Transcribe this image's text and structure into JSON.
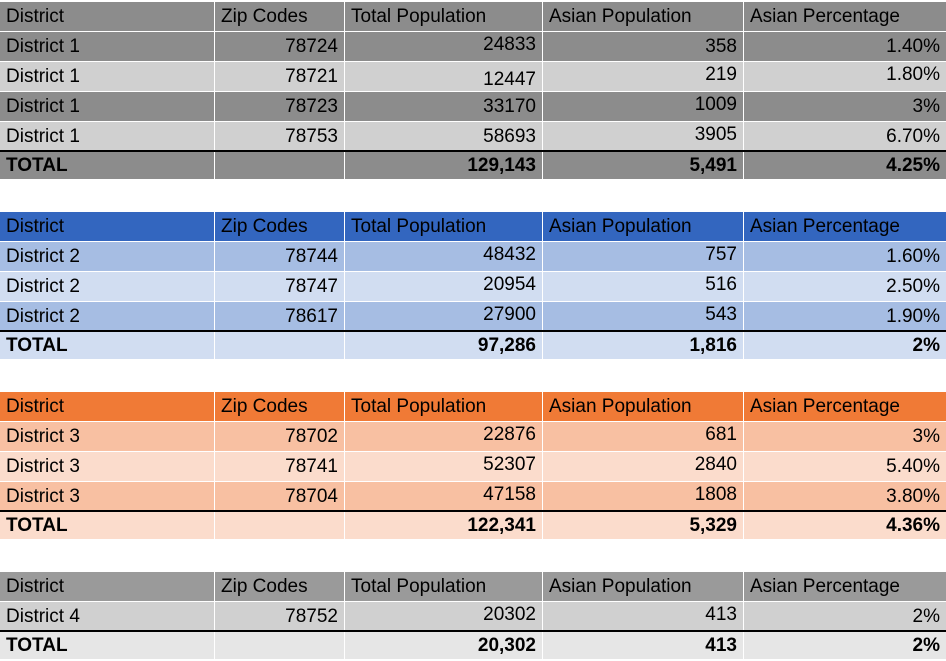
{
  "headers": [
    "District",
    "Zip Codes",
    "Total Population",
    "Asian Population",
    "Asian Percentage"
  ],
  "tables": [
    {
      "rows": [
        [
          "District 1",
          "78724",
          "24833",
          "358",
          "1.40%"
        ],
        [
          "District 1",
          "78721",
          "12447",
          "219",
          "1.80%"
        ],
        [
          "District 1",
          "78723",
          "33170",
          "1009",
          "3%"
        ],
        [
          "District 1",
          "78753",
          "58693",
          "3905",
          "6.70%"
        ]
      ],
      "total": [
        "TOTAL",
        "",
        "129,143",
        "5,491",
        "4.25%"
      ]
    },
    {
      "rows": [
        [
          "District 2",
          "78744",
          "48432",
          "757",
          "1.60%"
        ],
        [
          "District 2",
          "78747",
          "20954",
          "516",
          "2.50%"
        ],
        [
          "District 2",
          "78617",
          "27900",
          "543",
          "1.90%"
        ]
      ],
      "total": [
        "TOTAL",
        "",
        "97,286",
        "1,816",
        "2%"
      ]
    },
    {
      "rows": [
        [
          "District 3",
          "78702",
          "22876",
          "681",
          "3%"
        ],
        [
          "District 3",
          "78741",
          "52307",
          "2840",
          "5.40%"
        ],
        [
          "District 3",
          "78704",
          "47158",
          "1808",
          "3.80%"
        ]
      ],
      "total": [
        "TOTAL",
        "",
        "122,341",
        "5,329",
        "4.36%"
      ]
    },
    {
      "rows": [
        [
          "District 4",
          "78752",
          "20302",
          "413",
          "2%"
        ]
      ],
      "total": [
        "TOTAL",
        "",
        "20,302",
        "413",
        "2%"
      ]
    }
  ]
}
